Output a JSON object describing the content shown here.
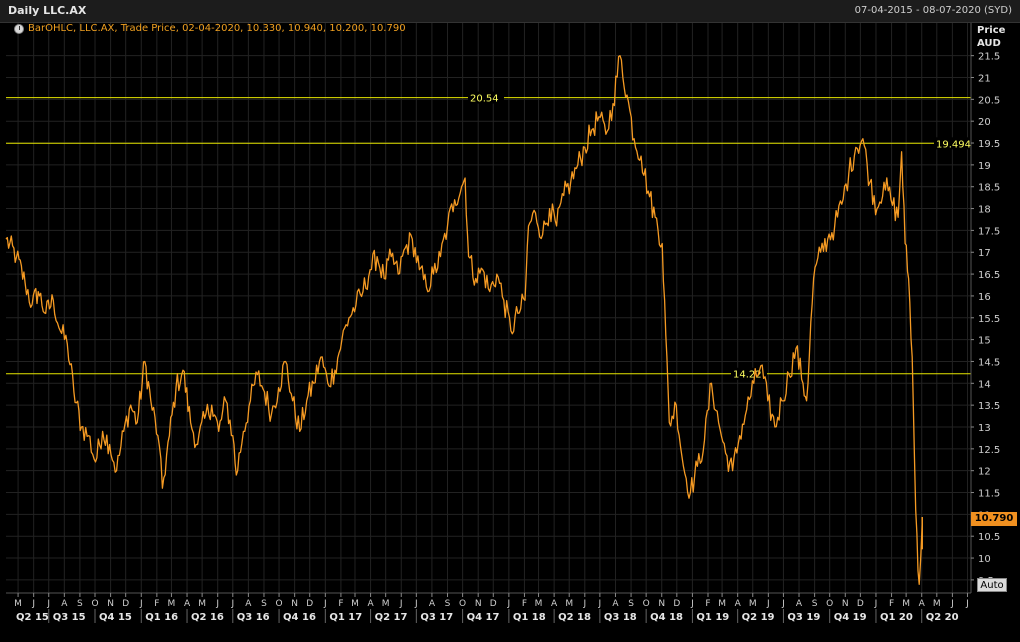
{
  "header": {
    "title": "Daily LLC.AX",
    "date_range": "07-04-2015 - 08-07-2020 (SYD)"
  },
  "legend": {
    "text": "BarOHLC, LLC.AX, Trade Price, 02-04-2020, 10.330, 10.940, 10.200, 10.790"
  },
  "axis": {
    "price_label": "Price",
    "currency_label": "AUD",
    "last_value": "10.790",
    "auto_label": "Auto"
  },
  "colors": {
    "series": "#f59a23",
    "hline": "#e6e600",
    "background": "#000000",
    "grid": "#222222"
  },
  "chart_data": {
    "type": "line",
    "series": [
      {
        "values": [
          [
            "2015-04-07",
            17.3
          ],
          [
            "2015-04-28",
            16.9
          ],
          [
            "2015-05-15",
            16.3
          ],
          [
            "2015-05-29",
            15.8
          ],
          [
            "2015-06-10",
            16.1
          ],
          [
            "2015-06-25",
            15.6
          ],
          [
            "2015-07-10",
            15.9
          ],
          [
            "2015-07-24",
            15.2
          ],
          [
            "2015-08-07",
            14.9
          ],
          [
            "2015-08-20",
            13.8
          ],
          [
            "2015-09-04",
            13.0
          ],
          [
            "2015-09-18",
            12.8
          ],
          [
            "2015-10-02",
            12.2
          ],
          [
            "2015-10-16",
            12.9
          ],
          [
            "2015-10-30",
            12.6
          ],
          [
            "2015-11-13",
            12.0
          ],
          [
            "2015-11-27",
            12.9
          ],
          [
            "2015-12-11",
            13.5
          ],
          [
            "2015-12-24",
            13.1
          ],
          [
            "2016-01-08",
            14.5
          ],
          [
            "2016-01-20",
            13.6
          ],
          [
            "2016-02-03",
            12.8
          ],
          [
            "2016-02-12",
            11.6
          ],
          [
            "2016-02-26",
            12.8
          ],
          [
            "2016-03-10",
            13.9
          ],
          [
            "2016-03-24",
            14.3
          ],
          [
            "2016-04-08",
            13.1
          ],
          [
            "2016-04-22",
            12.6
          ],
          [
            "2016-05-06",
            13.2
          ],
          [
            "2016-05-20",
            13.5
          ],
          [
            "2016-06-03",
            12.9
          ],
          [
            "2016-06-17",
            13.6
          ],
          [
            "2016-07-01",
            12.8
          ],
          [
            "2016-07-08",
            11.9
          ],
          [
            "2016-07-22",
            12.9
          ],
          [
            "2016-08-05",
            13.6
          ],
          [
            "2016-08-19",
            14.2
          ],
          [
            "2016-09-02",
            13.8
          ],
          [
            "2016-09-16",
            13.3
          ],
          [
            "2016-09-30",
            13.9
          ],
          [
            "2016-10-14",
            14.5
          ],
          [
            "2016-10-28",
            13.6
          ],
          [
            "2016-11-11",
            12.9
          ],
          [
            "2016-11-25",
            13.6
          ],
          [
            "2016-12-09",
            14.0
          ],
          [
            "2016-12-23",
            14.6
          ],
          [
            "2017-01-06",
            14.0
          ],
          [
            "2017-01-20",
            14.3
          ],
          [
            "2017-02-03",
            15.0
          ],
          [
            "2017-02-17",
            15.5
          ],
          [
            "2017-03-03",
            15.8
          ],
          [
            "2017-03-17",
            16.1
          ],
          [
            "2017-03-31",
            16.6
          ],
          [
            "2017-04-14",
            16.9
          ],
          [
            "2017-04-28",
            16.4
          ],
          [
            "2017-05-12",
            16.9
          ],
          [
            "2017-05-26",
            16.5
          ],
          [
            "2017-06-09",
            17.1
          ],
          [
            "2017-06-23",
            17.3
          ],
          [
            "2017-07-07",
            16.6
          ],
          [
            "2017-07-21",
            16.2
          ],
          [
            "2017-08-04",
            16.5
          ],
          [
            "2017-08-18",
            16.9
          ],
          [
            "2017-09-01",
            17.6
          ],
          [
            "2017-09-15",
            18.2
          ],
          [
            "2017-09-29",
            18.5
          ],
          [
            "2017-10-06",
            18.7
          ],
          [
            "2017-10-13",
            16.9
          ],
          [
            "2017-10-27",
            16.4
          ],
          [
            "2017-11-10",
            16.6
          ],
          [
            "2017-11-24",
            16.1
          ],
          [
            "2017-12-08",
            16.5
          ],
          [
            "2017-12-22",
            15.9
          ],
          [
            "2018-01-05",
            15.2
          ],
          [
            "2018-01-19",
            15.6
          ],
          [
            "2018-02-02",
            15.9
          ],
          [
            "2018-02-09",
            17.6
          ],
          [
            "2018-02-23",
            17.9
          ],
          [
            "2018-03-09",
            17.4
          ],
          [
            "2018-03-23",
            18.0
          ],
          [
            "2018-04-06",
            17.6
          ],
          [
            "2018-04-20",
            18.3
          ],
          [
            "2018-05-04",
            18.6
          ],
          [
            "2018-05-18",
            19.0
          ],
          [
            "2018-06-01",
            19.4
          ],
          [
            "2018-06-15",
            19.8
          ],
          [
            "2018-06-29",
            20.1
          ],
          [
            "2018-07-13",
            19.7
          ],
          [
            "2018-07-27",
            20.4
          ],
          [
            "2018-08-10",
            21.5
          ],
          [
            "2018-08-24",
            20.6
          ],
          [
            "2018-09-07",
            19.6
          ],
          [
            "2018-09-21",
            19.2
          ],
          [
            "2018-10-05",
            18.4
          ],
          [
            "2018-10-19",
            17.8
          ],
          [
            "2018-11-02",
            17.2
          ],
          [
            "2018-11-09",
            15.1
          ],
          [
            "2018-11-16",
            13.1
          ],
          [
            "2018-11-30",
            13.5
          ],
          [
            "2018-12-14",
            12.1
          ],
          [
            "2018-12-28",
            11.5
          ],
          [
            "2019-01-11",
            12.1
          ],
          [
            "2019-01-25",
            12.7
          ],
          [
            "2019-02-08",
            14.0
          ],
          [
            "2019-02-22",
            13.1
          ],
          [
            "2019-03-08",
            12.4
          ],
          [
            "2019-03-22",
            12.0
          ],
          [
            "2019-04-05",
            12.8
          ],
          [
            "2019-04-19",
            13.4
          ],
          [
            "2019-05-03",
            14.0
          ],
          [
            "2019-05-17",
            14.4
          ],
          [
            "2019-05-31",
            13.6
          ],
          [
            "2019-06-14",
            13.0
          ],
          [
            "2019-06-28",
            13.6
          ],
          [
            "2019-07-12",
            14.2
          ],
          [
            "2019-07-26",
            14.8
          ],
          [
            "2019-08-09",
            14.0
          ],
          [
            "2019-08-16",
            13.6
          ],
          [
            "2019-08-30",
            16.4
          ],
          [
            "2019-09-13",
            17.0
          ],
          [
            "2019-09-27",
            17.3
          ],
          [
            "2019-10-11",
            17.6
          ],
          [
            "2019-10-25",
            18.1
          ],
          [
            "2019-11-08",
            18.8
          ],
          [
            "2019-11-22",
            19.4
          ],
          [
            "2019-12-06",
            19.6
          ],
          [
            "2019-12-20",
            18.6
          ],
          [
            "2020-01-03",
            18.0
          ],
          [
            "2020-01-17",
            18.6
          ],
          [
            "2020-01-31",
            18.2
          ],
          [
            "2020-02-14",
            17.8
          ],
          [
            "2020-02-21",
            19.3
          ],
          [
            "2020-02-28",
            17.2
          ],
          [
            "2020-03-06",
            16.4
          ],
          [
            "2020-03-13",
            14.6
          ],
          [
            "2020-03-20",
            11.1
          ],
          [
            "2020-03-27",
            9.4
          ],
          [
            "2020-04-02",
            10.79
          ]
        ]
      }
    ],
    "hlines": [
      20.54,
      19.494,
      14.22
    ],
    "hline_labels": [
      "20.54",
      "19.494",
      "14.22"
    ],
    "ylim": [
      9.2,
      21.95
    ],
    "yticks": [
      9.5,
      10,
      10.5,
      11,
      11.5,
      12,
      12.5,
      13,
      13.5,
      14,
      14.5,
      15,
      15.5,
      16,
      16.5,
      17,
      17.5,
      18,
      18.5,
      19,
      19.5,
      20,
      20.5,
      21,
      21.5
    ],
    "xlim": [
      "2015-04-07",
      "2020-07-08"
    ],
    "month_labels": [
      "M",
      "J",
      "J",
      "A",
      "S",
      "O",
      "N",
      "D",
      "J",
      "F",
      "M",
      "A",
      "M",
      "J",
      "J",
      "A",
      "S",
      "O",
      "N",
      "D",
      "J",
      "F",
      "M",
      "A",
      "M",
      "J",
      "J",
      "A",
      "S",
      "O",
      "N",
      "D",
      "J",
      "F",
      "M",
      "A",
      "M",
      "J",
      "J",
      "A",
      "S",
      "O",
      "N",
      "D",
      "J",
      "F",
      "M",
      "A",
      "M",
      "J",
      "J",
      "A",
      "S",
      "O",
      "N",
      "D",
      "J",
      "F",
      "M",
      "A",
      "M",
      "J",
      "J"
    ],
    "quarter_labels": [
      "Q2 15",
      "Q3 15",
      "Q4 15",
      "Q1 16",
      "Q2 16",
      "Q3 16",
      "Q4 16",
      "Q1 17",
      "Q2 17",
      "Q3 17",
      "Q4 17",
      "Q1 18",
      "Q2 18",
      "Q3 18",
      "Q4 18",
      "Q1 19",
      "Q2 19",
      "Q3 19",
      "Q4 19",
      "Q1 20",
      "Q2 20"
    ],
    "grid": true
  }
}
